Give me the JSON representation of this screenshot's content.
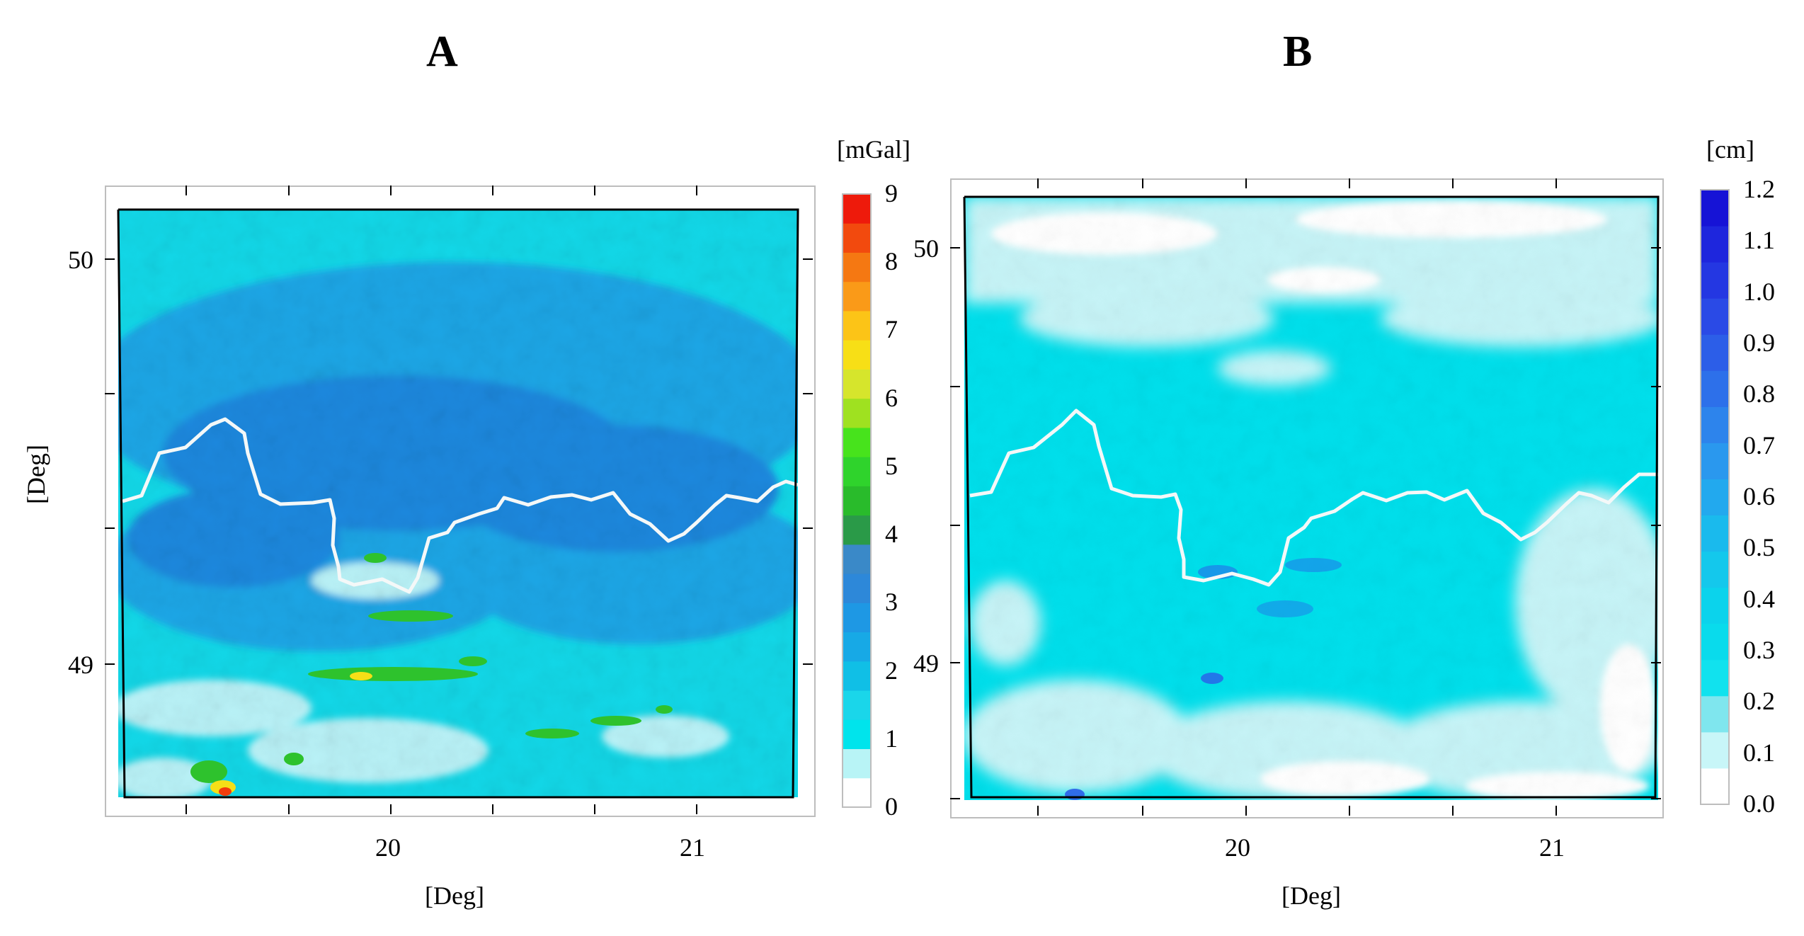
{
  "panels": [
    {
      "letter": "A",
      "unit_label": "[mGal]",
      "x_axis_label": "[Deg]",
      "y_axis_label": "[Deg]",
      "x_ticks": [
        "20",
        "21"
      ],
      "y_ticks": [
        "50",
        "49"
      ],
      "colorbar_ticks": [
        "9",
        "8",
        "7",
        "6",
        "5",
        "4",
        "3",
        "2",
        "1",
        "0"
      ],
      "colorbar_colors": [
        "#ffffff",
        "#b8f4f6",
        "#00e4ec",
        "#1ad6ea",
        "#10bfe6",
        "#17a9e6",
        "#1e98e4",
        "#2d88d9",
        "#3a89c8",
        "#2a9a48",
        "#29bb2b",
        "#2fd32c",
        "#47e31c",
        "#9fe120",
        "#d6e52c",
        "#f7df16",
        "#fcc417",
        "#fa9a18",
        "#f57812",
        "#f24a0e",
        "#ee1a0b"
      ]
    },
    {
      "letter": "B",
      "unit_label": "[cm]",
      "x_axis_label": "[Deg]",
      "y_axis_label": "",
      "x_ticks": [
        "20",
        "21"
      ],
      "y_ticks": [
        "50",
        "49"
      ],
      "colorbar_ticks": [
        "1.2",
        "1.1",
        "1.0",
        "0.9",
        "0.8",
        "0.7",
        "0.6",
        "0.5",
        "0.4",
        "0.3",
        "0.2",
        "0.1",
        "0.0"
      ],
      "colorbar_colors": [
        "#ffffff",
        "#c8f6f8",
        "#7fe6ee",
        "#11e2ee",
        "#09dbec",
        "#0bd3ec",
        "#14c8ec",
        "#1abaed",
        "#22a9ee",
        "#2a98ee",
        "#2d84ec",
        "#2d70ea",
        "#2c5ee8",
        "#2a4ae6",
        "#2437e2",
        "#1e26dd",
        "#1613d6"
      ]
    }
  ],
  "colors": {
    "map_base_a": "#12d8e8",
    "map_mid_a": "#1aa6e6",
    "map_deep_a": "#1d88de",
    "map_light_a": "#b9f2f7",
    "map_green": "#2ec22d",
    "map_yellow": "#f5df17",
    "map_red": "#f23c0c",
    "map_base_b": "#00e0ec",
    "map_light_b": "#c7f4f7",
    "map_blue_b": "#2a5ee8",
    "border_line": "#f4f8f8"
  }
}
